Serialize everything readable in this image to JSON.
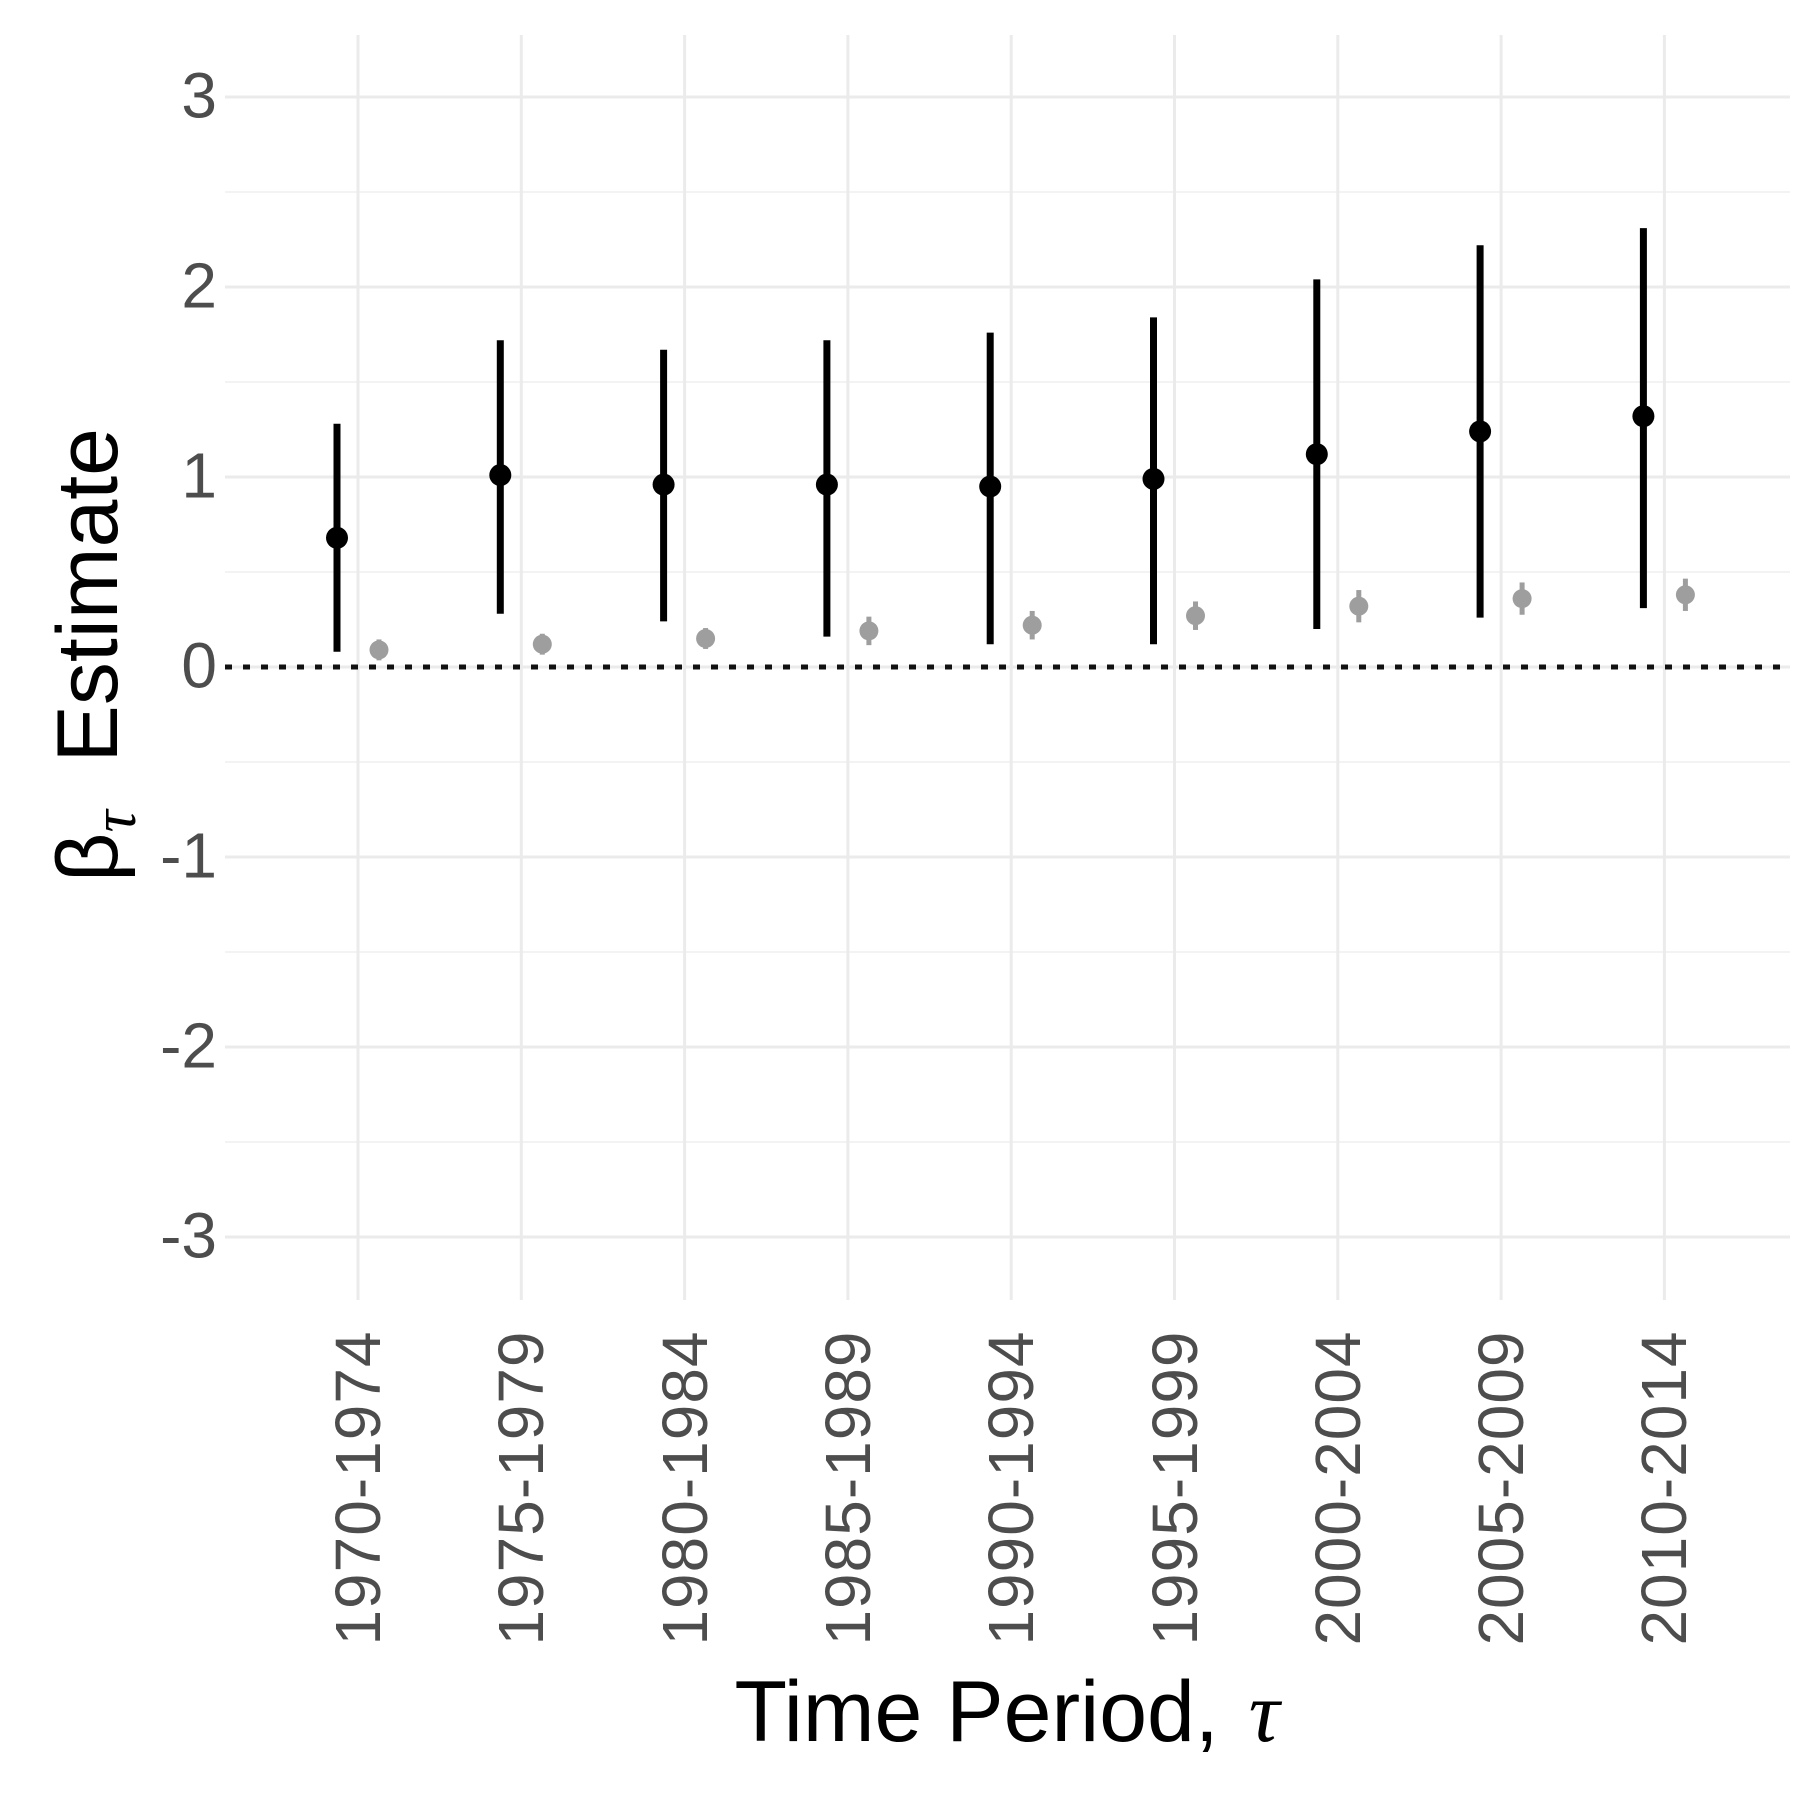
{
  "chart_data": {
    "type": "scatter",
    "subtype": "pointrange-errorbar",
    "title": "",
    "xlabel": "Time Period,  τ",
    "ylabel": "βτ Estimate",
    "ylabel_parts": {
      "symbol": "β",
      "subscript": "τ",
      "word": "Estimate"
    },
    "xlabel_parts": {
      "text": "Time Period,",
      "tau": "τ"
    },
    "categories": [
      "1970-1974",
      "1975-1979",
      "1980-1984",
      "1985-1989",
      "1990-1994",
      "1995-1999",
      "2000-2004",
      "2005-2009",
      "2010-2014"
    ],
    "y_ticks": [
      3,
      2,
      1,
      0,
      -1,
      -2,
      -3
    ],
    "y_tick_labels": [
      "3",
      "2",
      "1",
      "0",
      "-1",
      "-2",
      "-3"
    ],
    "ylim": [
      -3.35,
      3.35
    ],
    "grid": "major and minor horizontal gridlines, vertical gridline per category",
    "legend": "none",
    "reference_line": {
      "y": 0,
      "style": "dotted",
      "color": "#111111"
    },
    "series": [
      {
        "name": "primary (black) pointrange",
        "color": "#000000",
        "points": [
          {
            "category": "1970-1974",
            "estimate": 0.68,
            "lo": 0.08,
            "hi": 1.28
          },
          {
            "category": "1975-1979",
            "estimate": 1.01,
            "lo": 0.28,
            "hi": 1.72
          },
          {
            "category": "1980-1984",
            "estimate": 0.96,
            "lo": 0.24,
            "hi": 1.67
          },
          {
            "category": "1985-1989",
            "estimate": 0.96,
            "lo": 0.16,
            "hi": 1.72
          },
          {
            "category": "1990-1994",
            "estimate": 0.95,
            "lo": 0.12,
            "hi": 1.76
          },
          {
            "category": "1995-1999",
            "estimate": 0.99,
            "lo": 0.12,
            "hi": 1.84
          },
          {
            "category": "2000-2004",
            "estimate": 1.12,
            "lo": 0.2,
            "hi": 2.04
          },
          {
            "category": "2005-2009",
            "estimate": 1.24,
            "lo": 0.26,
            "hi": 2.22
          },
          {
            "category": "2010-2014",
            "estimate": 1.32,
            "lo": 0.31,
            "hi": 2.31
          }
        ]
      },
      {
        "name": "secondary (gray) pointrange",
        "color": "#9e9e9e",
        "points": [
          {
            "category": "1970-1974",
            "estimate": 0.09,
            "lo": 0.035,
            "hi": 0.145
          },
          {
            "category": "1975-1979",
            "estimate": 0.12,
            "lo": 0.065,
            "hi": 0.175
          },
          {
            "category": "1980-1984",
            "estimate": 0.15,
            "lo": 0.095,
            "hi": 0.205
          },
          {
            "category": "1985-1989",
            "estimate": 0.19,
            "lo": 0.115,
            "hi": 0.265
          },
          {
            "category": "1990-1994",
            "estimate": 0.22,
            "lo": 0.145,
            "hi": 0.295
          },
          {
            "category": "1995-1999",
            "estimate": 0.27,
            "lo": 0.195,
            "hi": 0.345
          },
          {
            "category": "2000-2004",
            "estimate": 0.32,
            "lo": 0.235,
            "hi": 0.405
          },
          {
            "category": "2005-2009",
            "estimate": 0.36,
            "lo": 0.275,
            "hi": 0.445
          },
          {
            "category": "2010-2014",
            "estimate": 0.38,
            "lo": 0.295,
            "hi": 0.465
          }
        ]
      }
    ]
  },
  "colors": {
    "background": "#ffffff",
    "axis_text": "#4d4d4d",
    "axis_title": "#000000",
    "grid_major": "#ebebeb",
    "grid_minor": "#f3f3f3",
    "series_black": "#000000",
    "series_gray": "#9e9e9e",
    "reference_line": "#111111"
  }
}
